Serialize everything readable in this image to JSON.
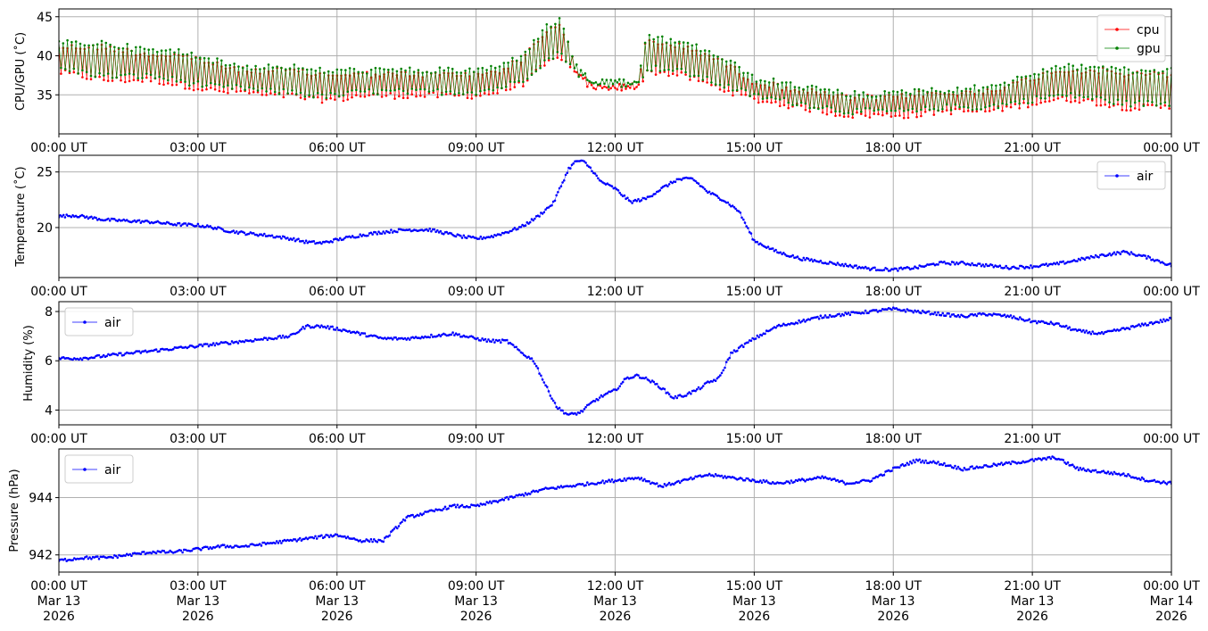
{
  "chart_data": [
    {
      "type": "line",
      "ylabel": "CPU/GPU (˚C)",
      "legend": "top-right",
      "grid": true,
      "xlim": [
        "2026-03-13T00:00",
        "2026-03-14T00:00"
      ],
      "ylim": [
        30,
        46
      ],
      "yticks": [
        35,
        40,
        45
      ],
      "xtick_labels": [
        "00:00 UT",
        "03:00 UT",
        "06:00 UT",
        "09:00 UT",
        "12:00 UT",
        "15:00 UT",
        "18:00 UT",
        "21:00 UT",
        "00:00 UT"
      ],
      "series": [
        {
          "name": "cpu",
          "color": "#ff0000",
          "x": [
            "00:00",
            "00:30",
            "01:00",
            "01:30",
            "02:00",
            "02:30",
            "03:00",
            "03:30",
            "04:00",
            "04:30",
            "05:00",
            "05:30",
            "06:00",
            "06:30",
            "07:00",
            "07:30",
            "08:00",
            "08:30",
            "09:00",
            "09:30",
            "10:00",
            "10:30",
            "10:50",
            "11:10",
            "11:30",
            "12:00",
            "12:30",
            "12:40",
            "13:00",
            "13:30",
            "14:00",
            "14:30",
            "15:00",
            "15:30",
            "16:00",
            "16:30",
            "17:00",
            "17:30",
            "18:00",
            "18:30",
            "19:00",
            "19:30",
            "20:00",
            "20:30",
            "21:00",
            "21:30",
            "22:00",
            "22:30",
            "23:00",
            "23:30",
            "24:00"
          ],
          "low": [
            37.5,
            37.0,
            36.5,
            36.5,
            36.5,
            36.0,
            35.5,
            35.0,
            35.0,
            34.5,
            34.5,
            34.0,
            34.0,
            34.5,
            34.5,
            34.5,
            34.5,
            34.5,
            34.5,
            35.0,
            36.0,
            38.5,
            39.5,
            37.0,
            35.5,
            35.5,
            35.5,
            37.5,
            37.5,
            37.0,
            36.0,
            35.0,
            34.0,
            33.5,
            33.0,
            32.5,
            32.0,
            32.0,
            32.0,
            32.0,
            32.5,
            32.5,
            32.5,
            33.0,
            33.5,
            34.0,
            34.0,
            33.5,
            33.0,
            33.0,
            33.0
          ],
          "high": [
            41.5,
            41.5,
            41.5,
            41.0,
            40.5,
            40.5,
            40.0,
            39.0,
            38.5,
            38.5,
            38.5,
            38.0,
            38.0,
            38.0,
            38.0,
            38.0,
            38.0,
            38.0,
            38.0,
            38.5,
            40.0,
            43.5,
            44.5,
            38.5,
            36.5,
            36.5,
            36.5,
            42.5,
            42.0,
            41.5,
            40.5,
            39.0,
            37.0,
            36.5,
            36.0,
            35.5,
            35.0,
            35.0,
            35.0,
            35.5,
            35.5,
            35.5,
            36.0,
            36.5,
            37.5,
            38.5,
            38.5,
            38.5,
            38.0,
            38.0,
            38.0
          ]
        },
        {
          "name": "gpu",
          "color": "#008000",
          "x": [
            "00:00",
            "00:30",
            "01:00",
            "01:30",
            "02:00",
            "02:30",
            "03:00",
            "03:30",
            "04:00",
            "04:30",
            "05:00",
            "05:30",
            "06:00",
            "06:30",
            "07:00",
            "07:30",
            "08:00",
            "08:30",
            "09:00",
            "09:30",
            "10:00",
            "10:30",
            "10:50",
            "11:10",
            "11:30",
            "12:00",
            "12:30",
            "12:40",
            "13:00",
            "13:30",
            "14:00",
            "14:30",
            "15:00",
            "15:30",
            "16:00",
            "16:30",
            "17:00",
            "17:30",
            "18:00",
            "18:30",
            "19:00",
            "19:30",
            "20:00",
            "20:30",
            "21:00",
            "21:30",
            "22:00",
            "22:30",
            "23:00",
            "23:30",
            "24:00"
          ],
          "low": [
            38.0,
            37.5,
            37.0,
            37.0,
            37.0,
            36.5,
            36.0,
            35.5,
            35.5,
            35.0,
            35.0,
            34.5,
            34.5,
            35.0,
            35.0,
            35.0,
            35.0,
            35.0,
            35.0,
            35.5,
            36.5,
            39.0,
            40.0,
            37.5,
            36.0,
            36.0,
            36.0,
            38.0,
            38.0,
            37.5,
            36.5,
            35.5,
            34.5,
            34.0,
            33.5,
            33.0,
            32.5,
            32.5,
            32.5,
            32.5,
            33.0,
            33.0,
            33.0,
            33.5,
            34.0,
            34.5,
            34.5,
            34.0,
            33.5,
            33.5,
            33.5
          ],
          "high": [
            42.0,
            42.0,
            42.0,
            41.5,
            41.0,
            41.0,
            40.5,
            39.5,
            39.0,
            39.0,
            39.0,
            38.5,
            38.5,
            38.5,
            38.5,
            38.5,
            38.5,
            38.5,
            38.5,
            39.0,
            40.5,
            44.0,
            45.0,
            39.0,
            37.0,
            37.0,
            37.0,
            43.0,
            42.5,
            42.0,
            41.0,
            39.5,
            37.5,
            37.0,
            36.5,
            36.0,
            35.5,
            35.5,
            35.5,
            36.0,
            36.0,
            36.0,
            36.5,
            37.0,
            38.0,
            39.0,
            39.0,
            39.0,
            38.5,
            38.5,
            38.5
          ]
        }
      ]
    },
    {
      "type": "line",
      "ylabel": "Temperature (˚C)",
      "legend": "top-right",
      "grid": true,
      "xlim": [
        "2026-03-13T00:00",
        "2026-03-14T00:00"
      ],
      "ylim": [
        15.5,
        26.5
      ],
      "yticks": [
        20,
        25
      ],
      "xtick_labels": [
        "00:00 UT",
        "03:00 UT",
        "06:00 UT",
        "09:00 UT",
        "12:00 UT",
        "15:00 UT",
        "18:00 UT",
        "21:00 UT",
        "00:00 UT"
      ],
      "series": [
        {
          "name": "air",
          "color": "#0000ff",
          "x": [
            "00:00",
            "00:20",
            "00:40",
            "01:00",
            "01:30",
            "02:00",
            "02:30",
            "03:00",
            "03:20",
            "03:40",
            "04:00",
            "04:30",
            "05:00",
            "05:20",
            "05:40",
            "06:00",
            "06:30",
            "07:00",
            "07:30",
            "08:00",
            "08:20",
            "08:40",
            "09:00",
            "09:20",
            "09:40",
            "10:00",
            "10:20",
            "10:40",
            "11:00",
            "11:10",
            "11:20",
            "11:30",
            "11:40",
            "12:00",
            "12:20",
            "12:40",
            "13:00",
            "13:20",
            "13:40",
            "14:00",
            "14:20",
            "14:40",
            "15:00",
            "15:30",
            "16:00",
            "16:30",
            "17:00",
            "17:30",
            "18:00",
            "18:30",
            "19:00",
            "19:30",
            "20:00",
            "20:30",
            "21:00",
            "21:30",
            "22:00",
            "22:30",
            "23:00",
            "23:30",
            "24:00"
          ],
          "y": [
            21.0,
            21.1,
            20.9,
            20.7,
            20.6,
            20.5,
            20.3,
            20.2,
            20.0,
            19.7,
            19.5,
            19.3,
            19.0,
            18.7,
            18.6,
            18.9,
            19.3,
            19.6,
            19.8,
            19.8,
            19.5,
            19.2,
            19.0,
            19.2,
            19.6,
            20.1,
            21.0,
            22.2,
            25.3,
            26.0,
            25.9,
            25.2,
            24.2,
            23.5,
            22.3,
            22.6,
            23.5,
            24.3,
            24.4,
            23.2,
            22.5,
            21.5,
            18.8,
            17.8,
            17.2,
            16.9,
            16.6,
            16.3,
            16.2,
            16.4,
            16.8,
            16.8,
            16.6,
            16.4,
            16.5,
            16.7,
            17.1,
            17.5,
            17.8,
            17.3,
            16.6
          ]
        }
      ]
    },
    {
      "type": "line",
      "ylabel": "Humidity (%)",
      "legend": "top-left",
      "grid": true,
      "xlim": [
        "2026-03-13T00:00",
        "2026-03-14T00:00"
      ],
      "ylim": [
        3.4,
        8.4
      ],
      "yticks": [
        4,
        6,
        8
      ],
      "xtick_labels": [
        "00:00 UT",
        "03:00 UT",
        "06:00 UT",
        "09:00 UT",
        "12:00 UT",
        "15:00 UT",
        "18:00 UT",
        "21:00 UT",
        "00:00 UT"
      ],
      "series": [
        {
          "name": "air",
          "color": "#0000ff",
          "x": [
            "00:00",
            "00:30",
            "01:00",
            "01:30",
            "02:00",
            "02:30",
            "03:00",
            "03:30",
            "04:00",
            "04:30",
            "05:00",
            "05:20",
            "05:40",
            "06:00",
            "06:30",
            "07:00",
            "07:30",
            "08:00",
            "08:30",
            "09:00",
            "09:20",
            "09:40",
            "10:00",
            "10:15",
            "10:30",
            "10:45",
            "11:00",
            "11:15",
            "11:30",
            "11:45",
            "12:00",
            "12:15",
            "12:30",
            "12:45",
            "13:00",
            "13:15",
            "13:30",
            "13:45",
            "14:00",
            "14:15",
            "14:30",
            "15:00",
            "15:30",
            "16:00",
            "16:30",
            "17:00",
            "17:30",
            "18:00",
            "18:30",
            "19:00",
            "19:30",
            "20:00",
            "20:30",
            "21:00",
            "21:30",
            "22:00",
            "22:30",
            "23:00",
            "23:30",
            "24:00"
          ],
          "y": [
            6.1,
            6.1,
            6.2,
            6.3,
            6.4,
            6.5,
            6.6,
            6.7,
            6.8,
            6.9,
            7.0,
            7.4,
            7.4,
            7.3,
            7.1,
            6.9,
            6.9,
            7.0,
            7.1,
            6.9,
            6.8,
            6.8,
            6.3,
            6.0,
            5.0,
            4.1,
            3.8,
            3.9,
            4.3,
            4.6,
            4.8,
            5.3,
            5.4,
            5.2,
            4.9,
            4.5,
            4.6,
            4.8,
            5.1,
            5.3,
            6.3,
            6.9,
            7.4,
            7.6,
            7.8,
            7.9,
            8.0,
            8.1,
            8.0,
            7.9,
            7.8,
            7.9,
            7.8,
            7.6,
            7.5,
            7.2,
            7.1,
            7.3,
            7.5,
            7.7
          ]
        }
      ]
    },
    {
      "type": "line",
      "ylabel": "Pressure (hPa)",
      "legend": "top-left",
      "grid": true,
      "xlim": [
        "2026-03-13T00:00",
        "2026-03-14T00:00"
      ],
      "ylim": [
        941.4,
        945.7
      ],
      "yticks": [
        942,
        944
      ],
      "xtick_labels": [
        "00:00 UT\nMar 13\n2026",
        "03:00 UT\nMar 13\n2026",
        "06:00 UT\nMar 13\n2026",
        "09:00 UT\nMar 13\n2026",
        "12:00 UT\nMar 13\n2026",
        "15:00 UT\nMar 13\n2026",
        "18:00 UT\nMar 13\n2026",
        "21:00 UT\nMar 13\n2026",
        "00:00 UT\nMar 14\n2026"
      ],
      "series": [
        {
          "name": "air",
          "color": "#0000ff",
          "x": [
            "00:00",
            "00:30",
            "01:00",
            "01:30",
            "02:00",
            "02:30",
            "03:00",
            "03:30",
            "04:00",
            "04:30",
            "05:00",
            "05:30",
            "06:00",
            "06:30",
            "07:00",
            "07:30",
            "08:00",
            "08:30",
            "09:00",
            "09:30",
            "10:00",
            "10:30",
            "11:00",
            "11:30",
            "12:00",
            "12:30",
            "13:00",
            "13:30",
            "14:00",
            "14:30",
            "15:00",
            "15:30",
            "16:00",
            "16:30",
            "17:00",
            "17:30",
            "18:00",
            "18:30",
            "19:00",
            "19:30",
            "20:00",
            "20:30",
            "21:00",
            "21:30",
            "22:00",
            "22:30",
            "23:00",
            "23:30",
            "24:00"
          ],
          "y": [
            941.8,
            941.9,
            941.9,
            942.0,
            942.1,
            942.1,
            942.2,
            942.3,
            942.3,
            942.4,
            942.5,
            942.6,
            942.7,
            942.5,
            942.5,
            943.3,
            943.5,
            943.7,
            943.7,
            943.9,
            944.1,
            944.3,
            944.4,
            944.5,
            944.6,
            944.7,
            944.4,
            944.6,
            944.8,
            944.7,
            944.6,
            944.5,
            944.6,
            944.7,
            944.5,
            944.6,
            945.0,
            945.3,
            945.2,
            945.0,
            945.1,
            945.2,
            945.3,
            945.4,
            945.0,
            944.9,
            944.8,
            944.6,
            944.5
          ]
        }
      ]
    }
  ]
}
